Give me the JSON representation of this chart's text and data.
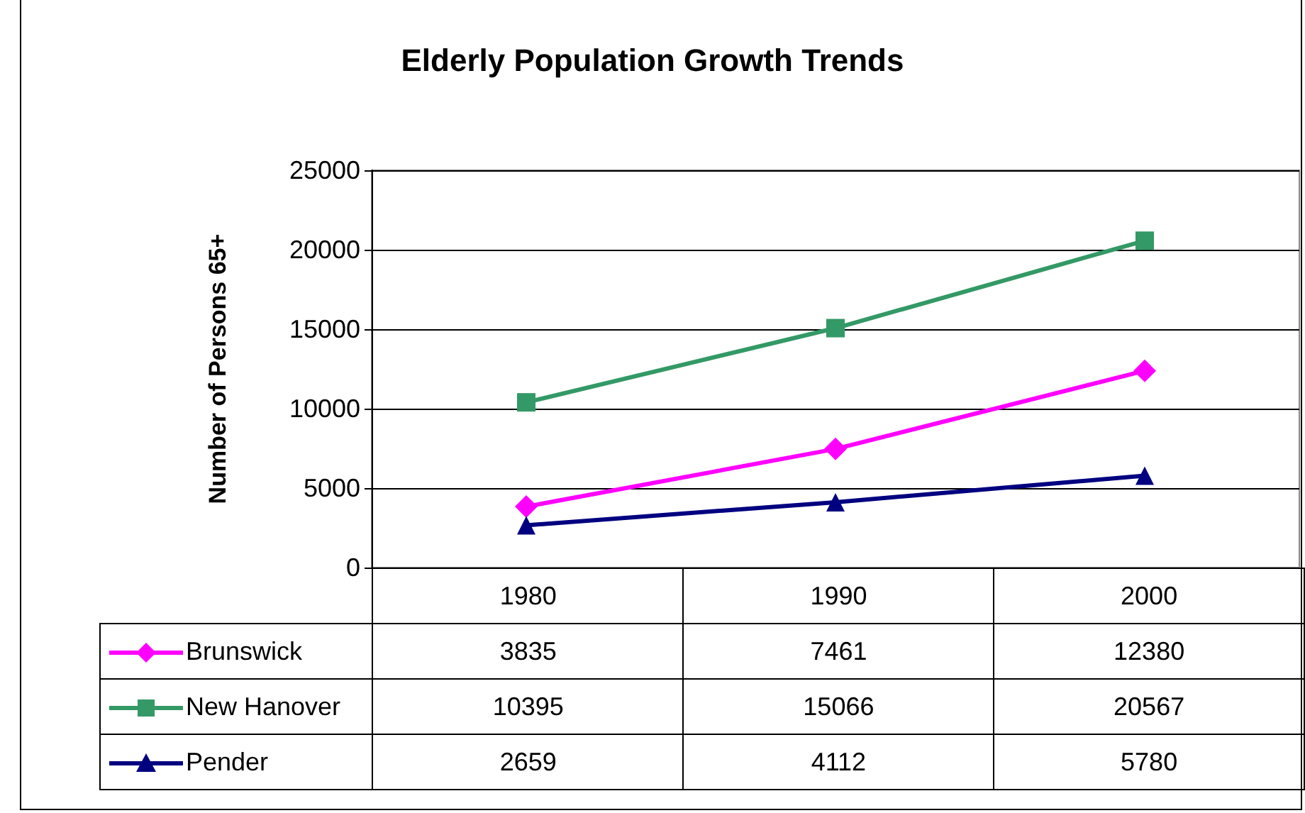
{
  "chart_data": {
    "type": "line",
    "title": "Elderly Population Growth Trends",
    "ylabel": "Number of Persons 65+",
    "categories": [
      "1980",
      "1990",
      "2000"
    ],
    "series": [
      {
        "name": "Brunswick",
        "color": "#ff00ff",
        "marker": "diamond",
        "values": [
          3835,
          7461,
          12380
        ]
      },
      {
        "name": "New Hanover",
        "color": "#339966",
        "marker": "square",
        "values": [
          10395,
          15066,
          20567
        ]
      },
      {
        "name": "Pender",
        "color": "#000080",
        "marker": "triangle",
        "values": [
          2659,
          4112,
          5780
        ]
      }
    ],
    "ylim": [
      0,
      25000
    ],
    "yticks": [
      0,
      5000,
      10000,
      15000,
      20000,
      25000
    ],
    "grid": "y",
    "legend": "bottom",
    "data_labels": true
  }
}
